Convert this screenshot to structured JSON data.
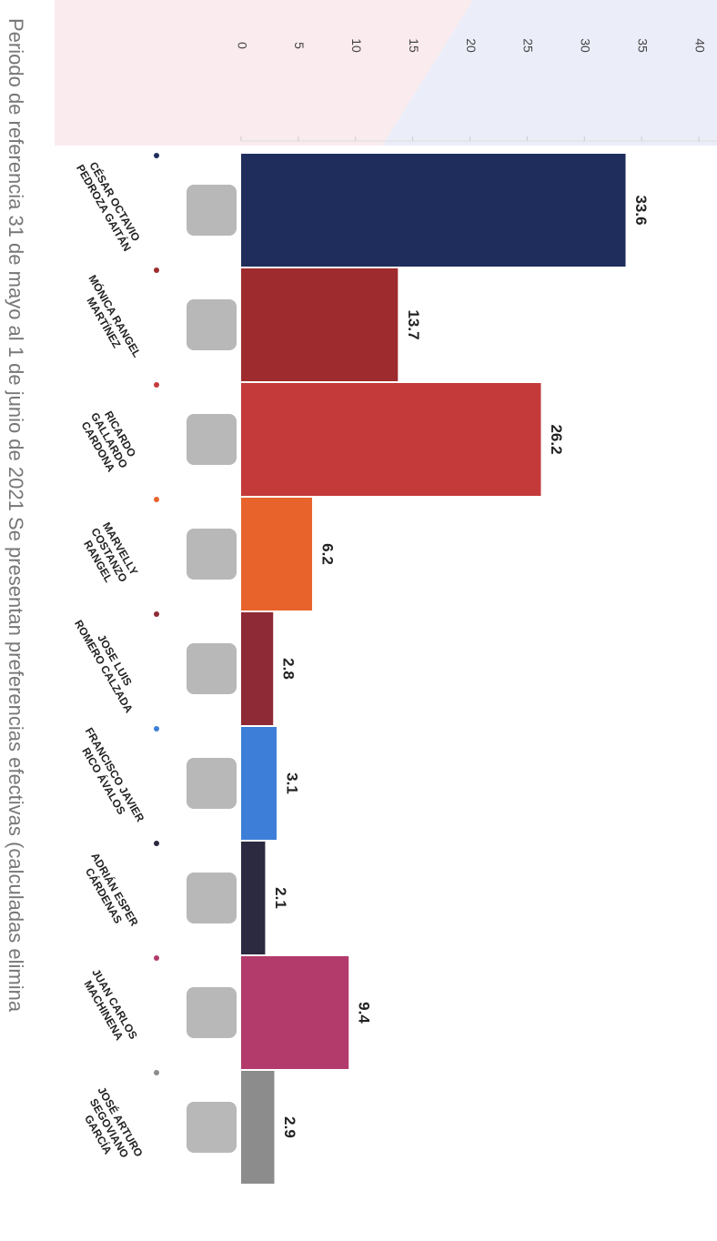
{
  "chart_data": {
    "type": "bar",
    "categories": [
      "CÉSAR OCTAVIO PEDROZA GAITÁN",
      "MÓNICA RANGEL MARTÍNEZ",
      "RICARDO GALLARDO CARDONA",
      "MARVELLY COSTANZO RANGEL",
      "JOSE LUIS ROMERO CALZADA",
      "FRANCISCO JAVIER RICO ÁVALOS",
      "ADRIÁN ESPER CÁRDENAS",
      "JUAN CARLOS MACHINENA",
      "JOSÉ ARTURO SEGOVIANO GARCÍA"
    ],
    "values": [
      33.6,
      13.7,
      26.2,
      6.2,
      2.8,
      3.1,
      2.1,
      9.4,
      2.9
    ],
    "colors": [
      "#1f2d5c",
      "#9e2b2e",
      "#c43a3b",
      "#e8632b",
      "#8e2a35",
      "#3d7fd8",
      "#2b2a40",
      "#b23b6c",
      "#8c8c8c"
    ],
    "ylim": [
      0,
      40
    ],
    "yticks": [
      0,
      5,
      10,
      15,
      20,
      25,
      30,
      35,
      40
    ],
    "footnote": "Periodo de referencia 31 de mayo al 1 de junio de 2021  Se presentan preferencias efectivas (calculadas elimina"
  }
}
